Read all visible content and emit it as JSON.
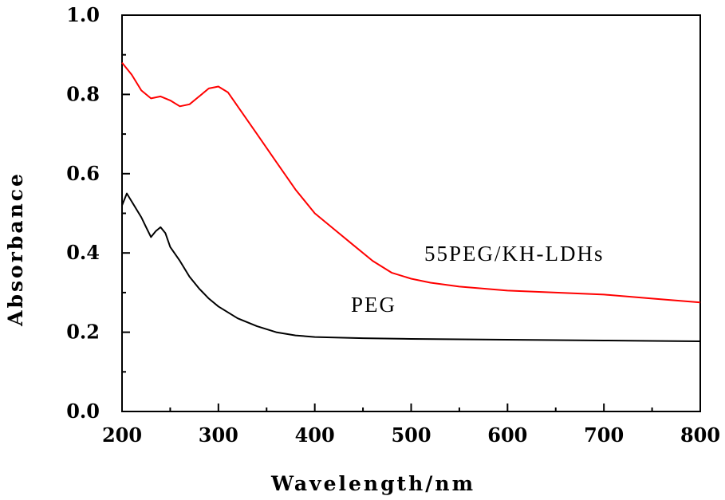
{
  "chart_data": {
    "type": "line",
    "xlabel": "Wavelength/nm",
    "ylabel": "Absorbance",
    "xlim": [
      200,
      800
    ],
    "ylim": [
      0.0,
      1.0
    ],
    "x_ticks": [
      "200",
      "300",
      "400",
      "500",
      "600",
      "700",
      "800"
    ],
    "y_ticks": [
      "0.0",
      "0.2",
      "0.4",
      "0.6",
      "0.8",
      "1.0"
    ],
    "grid": false,
    "series": [
      {
        "name": "55PEG/KH-LDHs",
        "color": "#ff0000",
        "x": [
          200,
          210,
          220,
          230,
          240,
          250,
          260,
          270,
          280,
          290,
          300,
          310,
          320,
          340,
          360,
          380,
          400,
          420,
          440,
          460,
          480,
          500,
          520,
          550,
          600,
          650,
          700,
          750,
          800
        ],
        "y": [
          0.88,
          0.85,
          0.81,
          0.79,
          0.795,
          0.785,
          0.77,
          0.775,
          0.795,
          0.815,
          0.82,
          0.805,
          0.77,
          0.7,
          0.63,
          0.56,
          0.5,
          0.46,
          0.42,
          0.38,
          0.35,
          0.335,
          0.325,
          0.315,
          0.305,
          0.3,
          0.295,
          0.285,
          0.275
        ]
      },
      {
        "name": "PEG",
        "color": "#000000",
        "x": [
          200,
          205,
          210,
          215,
          220,
          225,
          230,
          235,
          240,
          245,
          250,
          260,
          270,
          280,
          290,
          300,
          320,
          340,
          360,
          380,
          400,
          450,
          500,
          550,
          600,
          650,
          700,
          750,
          800
        ],
        "y": [
          0.52,
          0.55,
          0.53,
          0.51,
          0.49,
          0.465,
          0.44,
          0.455,
          0.465,
          0.45,
          0.415,
          0.38,
          0.34,
          0.31,
          0.285,
          0.265,
          0.235,
          0.215,
          0.2,
          0.192,
          0.188,
          0.185,
          0.183,
          0.182,
          0.181,
          0.18,
          0.179,
          0.178,
          0.177
        ]
      }
    ]
  }
}
